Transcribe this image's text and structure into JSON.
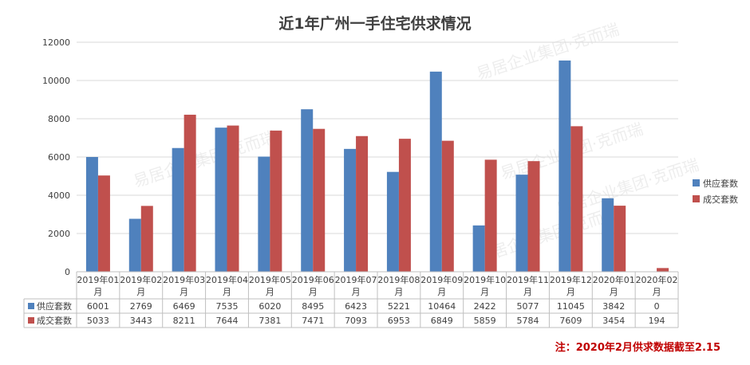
{
  "chart_data": {
    "type": "bar",
    "title": "近1年广州一手住宅供求情况",
    "categories": [
      [
        "2019年01",
        "月"
      ],
      [
        "2019年02",
        "月"
      ],
      [
        "2019年03",
        "月"
      ],
      [
        "2019年04",
        "月"
      ],
      [
        "2019年05",
        "月"
      ],
      [
        "2019年06",
        "月"
      ],
      [
        "2019年07",
        "月"
      ],
      [
        "2019年08",
        "月"
      ],
      [
        "2019年09",
        "月"
      ],
      [
        "2019年10",
        "月"
      ],
      [
        "2019年11",
        "月"
      ],
      [
        "2019年12",
        "月"
      ],
      [
        "2020年01",
        "月"
      ],
      [
        "2020年02",
        "月"
      ]
    ],
    "series": [
      {
        "name": "供应套数",
        "color": "#4F81BD",
        "values": [
          6001,
          2769,
          6469,
          7535,
          6020,
          8495,
          6423,
          5221,
          10464,
          2422,
          5077,
          11045,
          3842,
          0
        ]
      },
      {
        "name": "成交套数",
        "color": "#C0504D",
        "values": [
          5033,
          3443,
          8211,
          7644,
          7381,
          7471,
          7093,
          6953,
          6849,
          5859,
          5784,
          7609,
          3454,
          194
        ]
      }
    ],
    "ylim": [
      0,
      12000
    ],
    "yticks": [
      0,
      2000,
      4000,
      6000,
      8000,
      10000,
      12000
    ],
    "grid": true,
    "legend_position": "right",
    "data_table": true
  },
  "watermark": "易居企业集团·克而瑞",
  "footnote": "注：2020年2月供求数据截至2.15",
  "colors": {
    "gridline": "#D9D9D9",
    "axis": "#BFBFBF",
    "text": "#404040",
    "footnote": "#C00000"
  }
}
